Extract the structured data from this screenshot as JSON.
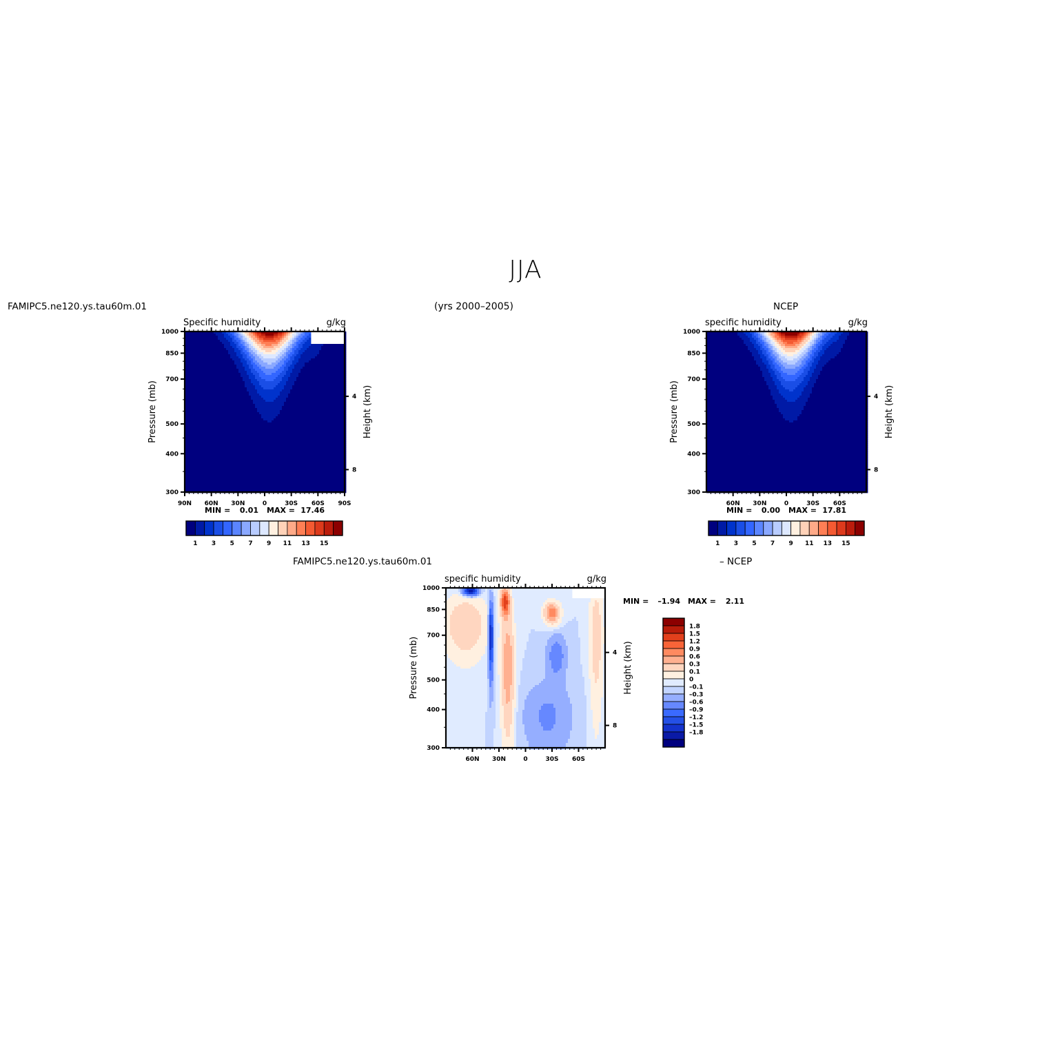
{
  "header": {
    "title": "JJA",
    "subtitle": "(yrs 2000–2005)",
    "case_name": "FAMIPC5.ne120.ys.tau60m.01",
    "ref_name": "NCEP",
    "diff_case": "FAMIPC5.ne120.ys.tau60m.01",
    "diff_ref": "– NCEP"
  },
  "chart_data": [
    {
      "type": "heatmap",
      "id": "model",
      "title_left": "Specific humidity",
      "title_right": "g/kg",
      "ylabel": "Pressure (mb)",
      "ylabel_right": "Height (km)",
      "y_ticks": [
        "300",
        "400",
        "500",
        "700",
        "850",
        "1000"
      ],
      "y_right_ticks": [
        "8",
        "4"
      ],
      "x_ticks": [
        "90N",
        "60N",
        "30N",
        "0",
        "30S",
        "60S",
        "90S"
      ],
      "xlim": [
        90,
        -90
      ],
      "ylim": [
        1000,
        300
      ],
      "min_label": "MIN =",
      "min_value": "0.01",
      "max_label": "MAX =",
      "max_value": "17.46",
      "colorbar_labels": [
        "1",
        "3",
        "5",
        "7",
        "9",
        "11",
        "13",
        "15"
      ],
      "peak_lat": -5,
      "peak_value": 17.46,
      "width_deg": 34,
      "top_level": 425,
      "missing_region": {
        "lat_from": -52,
        "lat_to": -90,
        "p_from": 915,
        "p_to": 1000
      }
    },
    {
      "type": "heatmap",
      "id": "ncep",
      "title_left": "specific humidity",
      "title_right": "g/kg",
      "ylabel": "Pressure (mb)",
      "ylabel_right": "Height (km)",
      "y_ticks": [
        "300",
        "400",
        "500",
        "700",
        "850",
        "1000"
      ],
      "y_right_ticks": [
        "8",
        "4"
      ],
      "x_ticks": [
        "60N",
        "30N",
        "0",
        "30S",
        "60S"
      ],
      "xlim": [
        90,
        -90
      ],
      "ylim": [
        1000,
        300
      ],
      "min_label": "MIN =",
      "min_value": "0.00",
      "max_label": "MAX =",
      "max_value": "17.81",
      "colorbar_labels": [
        "1",
        "3",
        "5",
        "7",
        "9",
        "11",
        "13",
        "15"
      ],
      "peak_lat": -5,
      "peak_value": 17.81,
      "width_deg": 33,
      "top_level": 410
    },
    {
      "type": "heatmap",
      "id": "diff",
      "title_left": "specific humidity",
      "title_right": "g/kg",
      "ylabel": "Pressure (mb)",
      "ylabel_right": "Height (km)",
      "y_ticks": [
        "300",
        "400",
        "500",
        "700",
        "850",
        "1000"
      ],
      "y_right_ticks": [
        "8",
        "4"
      ],
      "x_ticks": [
        "60N",
        "30N",
        "0",
        "30S",
        "60S"
      ],
      "xlim": [
        90,
        -90
      ],
      "ylim": [
        1000,
        300
      ],
      "min_label": "MIN =",
      "min_value": "–1.94",
      "max_label": "MAX =",
      "max_value": "2.11",
      "colorbar_labels": [
        "1.8",
        "1.5",
        "1.2",
        "0.9",
        "0.6",
        "0.3",
        "0.1",
        "0",
        "–0.1",
        "–0.3",
        "–0.6",
        "–0.9",
        "–1.2",
        "–1.5",
        "–1.8"
      ],
      "missing_region": {
        "lat_from": -52,
        "lat_to": -90,
        "p_from": 925,
        "p_to": 1000
      }
    }
  ],
  "colors": {
    "full_scale": [
      "#00007f",
      "#001aa6",
      "#0033cc",
      "#1a4ee6",
      "#3366ff",
      "#5b85ff",
      "#8aa8ff",
      "#b8ccff",
      "#dde8ff",
      "#fff0e0",
      "#ffd2b8",
      "#ffaa88",
      "#ff7f55",
      "#f45a32",
      "#dd3a1c",
      "#bb1c0c",
      "#8c0000"
    ],
    "diff_scale": [
      "#00007f",
      "#0a1aa6",
      "#1433cc",
      "#2450e6",
      "#3a6aff",
      "#6688ff",
      "#95aeff",
      "#c2d4ff",
      "#e0ebff",
      "#fff0e0",
      "#ffd6c0",
      "#ffb090",
      "#ff8a60",
      "#f86438",
      "#e2401c",
      "#b81c0a",
      "#8c0000"
    ]
  }
}
